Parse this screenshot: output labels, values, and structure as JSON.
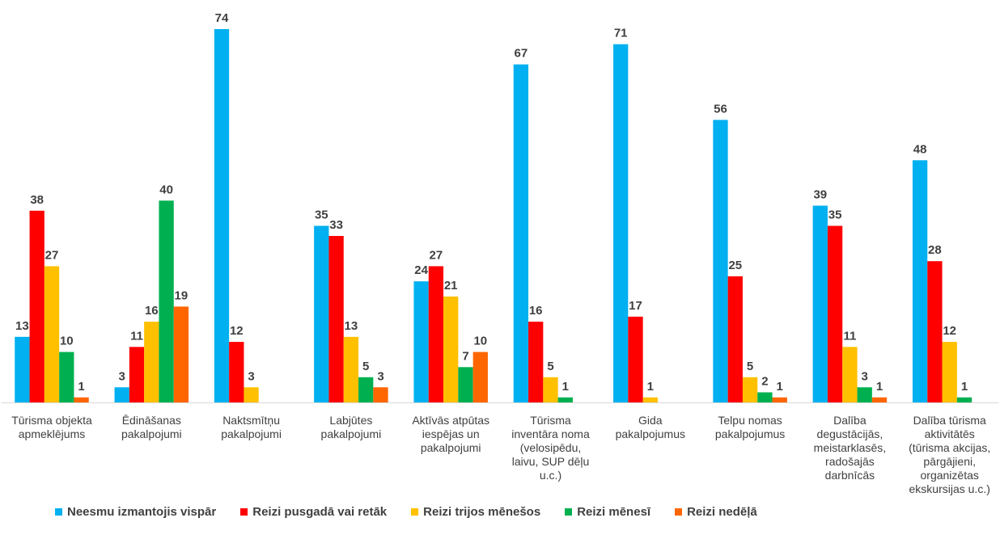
{
  "chart_data": {
    "type": "bar",
    "title": "",
    "xlabel": "",
    "ylabel": "",
    "ylim": [
      0,
      78
    ],
    "grid": false,
    "legend_position": "bottom",
    "categories": [
      [
        "Tūrisma objekta",
        "apmeklējums"
      ],
      [
        "Ēdināšanas",
        "pakalpojumi"
      ],
      [
        "Naktsmītņu",
        "pakalpojumi"
      ],
      [
        "Labjūtes",
        "pakalpojumi"
      ],
      [
        "Aktīvās atpūtas",
        "iespējas un",
        "pakalpojumi"
      ],
      [
        "Tūrisma",
        "inventāra noma",
        "(velosipēdu,",
        "laivu, SUP dēļu",
        "u.c.)"
      ],
      [
        "Gida",
        "pakalpojumus"
      ],
      [
        "Telpu nomas",
        "pakalpojumus"
      ],
      [
        "Dalība",
        "degustācijās,",
        "meistarklasēs,",
        "radošajās",
        "darbnīcās"
      ],
      [
        "Dalība tūrisma",
        "aktivitātēs",
        "(tūrisma akcijas,",
        "pārgājieni,",
        "organizētas",
        "ekskursijas u.c.)"
      ]
    ],
    "series": [
      {
        "name": "Neesmu izmantojis vispār",
        "color": "#00B0F0",
        "values": [
          13,
          3,
          74,
          35,
          24,
          67,
          71,
          56,
          39,
          48
        ]
      },
      {
        "name": "Reizi pusgadā vai retāk",
        "color": "#FF0000",
        "values": [
          38,
          11,
          12,
          33,
          27,
          16,
          17,
          25,
          35,
          28
        ]
      },
      {
        "name": "Reizi trijos mēnešos",
        "color": "#FFC000",
        "values": [
          27,
          16,
          3,
          13,
          21,
          5,
          1,
          5,
          11,
          12
        ]
      },
      {
        "name": "Reizi mēnesī",
        "color": "#00B050",
        "values": [
          10,
          40,
          null,
          5,
          7,
          1,
          null,
          2,
          3,
          1
        ]
      },
      {
        "name": "Reizi nedēļā",
        "color": "#FF6600",
        "values": [
          1,
          19,
          null,
          3,
          10,
          null,
          null,
          1,
          1,
          null
        ]
      }
    ]
  }
}
